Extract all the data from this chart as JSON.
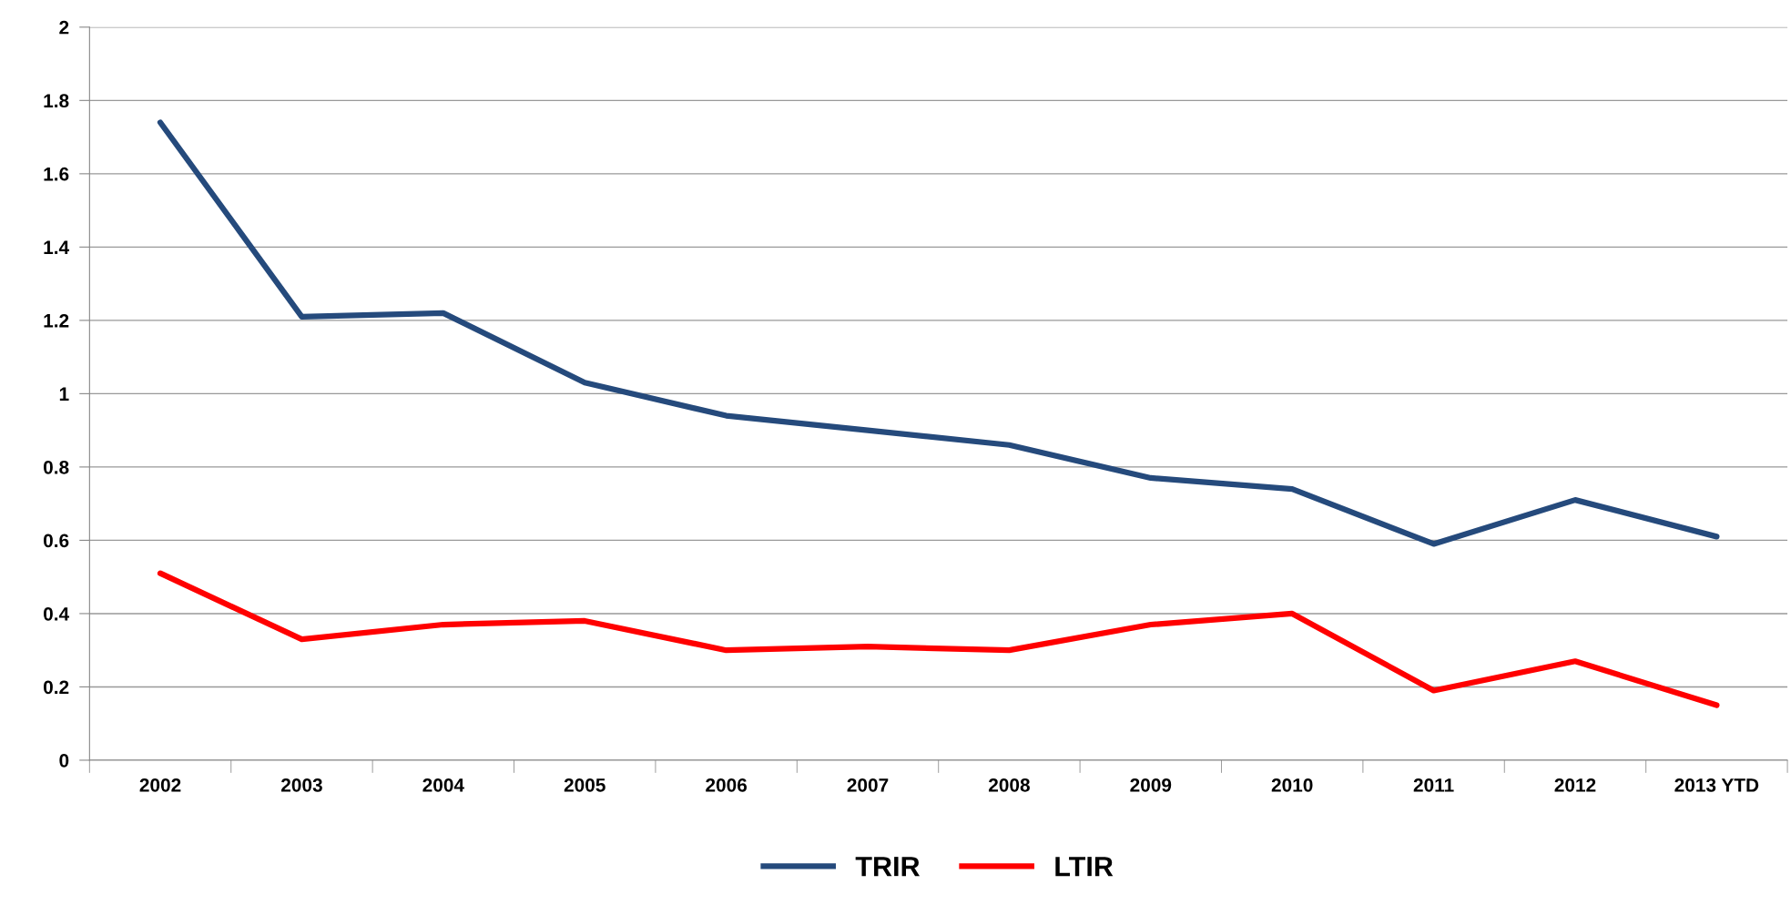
{
  "chart_data": {
    "type": "line",
    "categories": [
      "2002",
      "2003",
      "2004",
      "2005",
      "2006",
      "2007",
      "2008",
      "2009",
      "2010",
      "2011",
      "2012",
      "2013 YTD"
    ],
    "series": [
      {
        "name": "TRIR",
        "color": "#254a7c",
        "values": [
          1.74,
          1.21,
          1.22,
          1.03,
          0.94,
          0.9,
          0.86,
          0.77,
          0.74,
          0.59,
          0.71,
          0.61
        ]
      },
      {
        "name": "LTIR",
        "color": "#ff0000",
        "values": [
          0.51,
          0.33,
          0.37,
          0.38,
          0.3,
          0.31,
          0.3,
          0.37,
          0.4,
          0.19,
          0.27,
          0.15
        ]
      }
    ],
    "ylim": [
      0,
      2
    ],
    "yticks": [
      0,
      0.2,
      0.4,
      0.6,
      0.8,
      1,
      1.2,
      1.4,
      1.6,
      1.8,
      2
    ],
    "grid": "y",
    "legend": "bottom",
    "marker": "none",
    "line_style": "solid"
  }
}
